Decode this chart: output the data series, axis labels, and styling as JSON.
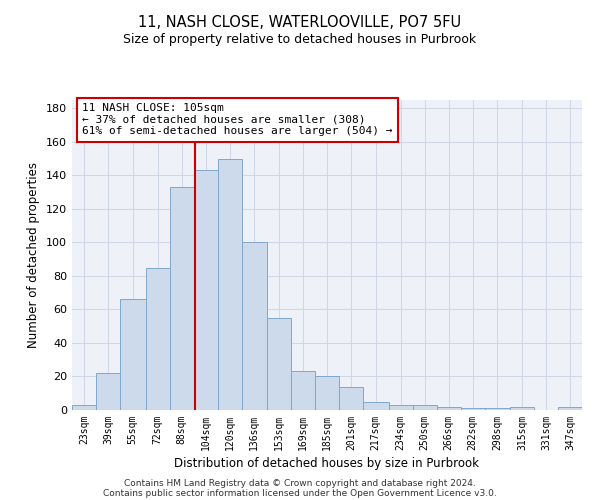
{
  "title_line1": "11, NASH CLOSE, WATERLOOVILLE, PO7 5FU",
  "title_line2": "Size of property relative to detached houses in Purbrook",
  "xlabel": "Distribution of detached houses by size in Purbrook",
  "ylabel": "Number of detached properties",
  "bar_labels": [
    "23sqm",
    "39sqm",
    "55sqm",
    "72sqm",
    "88sqm",
    "104sqm",
    "120sqm",
    "136sqm",
    "153sqm",
    "169sqm",
    "185sqm",
    "201sqm",
    "217sqm",
    "234sqm",
    "250sqm",
    "266sqm",
    "282sqm",
    "298sqm",
    "315sqm",
    "331sqm",
    "347sqm"
  ],
  "bar_values": [
    3,
    22,
    66,
    85,
    133,
    143,
    150,
    100,
    55,
    23,
    20,
    14,
    5,
    3,
    3,
    2,
    1,
    1,
    2,
    0,
    2
  ],
  "bar_color": "#ccdaec",
  "bar_edge_color": "#7fa8cc",
  "vline_x": 105,
  "vline_color": "#cc0000",
  "annotation_line1": "11 NASH CLOSE: 105sqm",
  "annotation_line2": "← 37% of detached houses are smaller (308)",
  "annotation_line3": "61% of semi-detached houses are larger (504) →",
  "ylim": [
    0,
    185
  ],
  "yticks": [
    0,
    20,
    40,
    60,
    80,
    100,
    120,
    140,
    160,
    180
  ],
  "bg_color": "#eef2f8",
  "grid_color": "#d0d8e8",
  "footer_line1": "Contains HM Land Registry data © Crown copyright and database right 2024.",
  "footer_line2": "Contains public sector information licensed under the Open Government Licence v3.0.",
  "bin_edges": [
    23,
    39,
    55,
    72,
    88,
    104,
    120,
    136,
    153,
    169,
    185,
    201,
    217,
    234,
    250,
    266,
    282,
    298,
    315,
    331,
    347,
    363
  ]
}
